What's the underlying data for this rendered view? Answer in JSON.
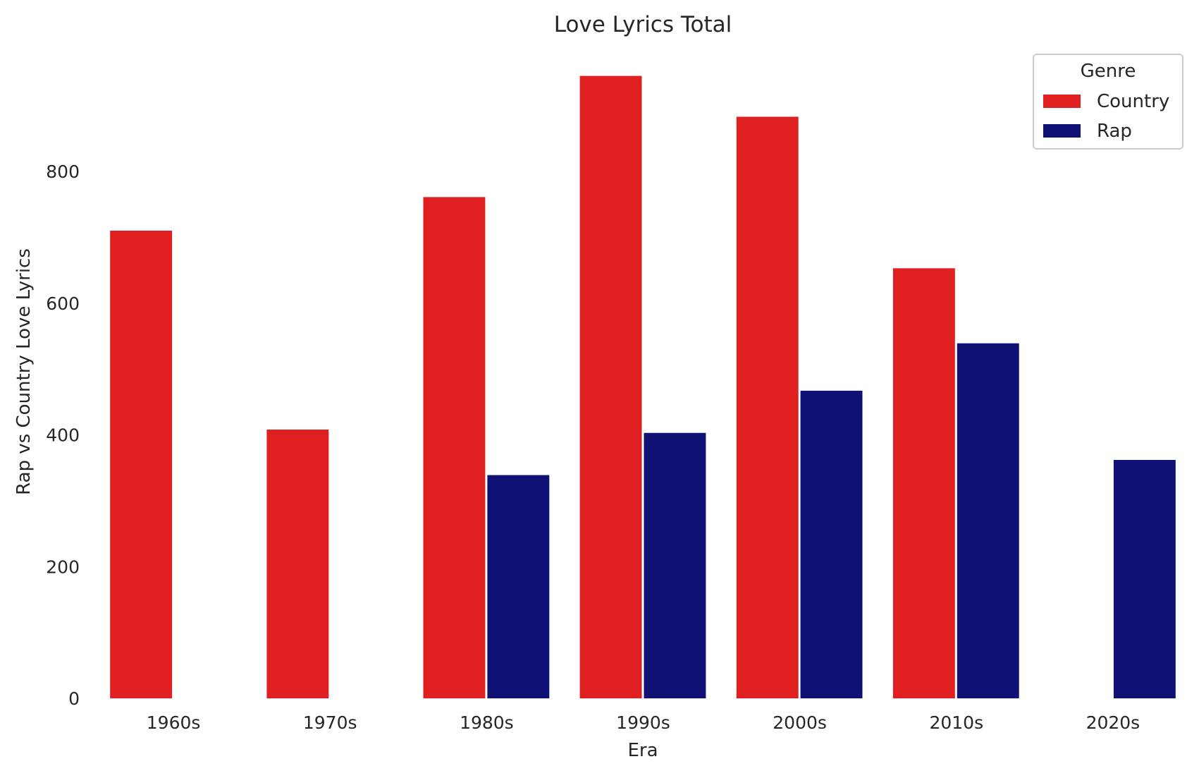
{
  "chart_data": {
    "type": "bar",
    "title": "Love Lyrics Total",
    "xlabel": "Era",
    "ylabel": "Rap vs Country Love Lyrics",
    "categories": [
      "1960s",
      "1970s",
      "1980s",
      "1990s",
      "2000s",
      "2010s",
      "2020s"
    ],
    "series": [
      {
        "name": "Country",
        "color": "#e02020",
        "values": [
          710,
          408,
          761,
          945,
          883,
          653,
          null
        ]
      },
      {
        "name": "Rap",
        "color": "#0f1175",
        "values": [
          null,
          null,
          339,
          403,
          467,
          539,
          362
        ]
      }
    ],
    "ylim": [
      0,
      960
    ],
    "yticks": [
      0,
      200,
      400,
      600,
      800
    ],
    "grid": false,
    "legend": {
      "title": "Genre",
      "placement": "top-right"
    }
  }
}
